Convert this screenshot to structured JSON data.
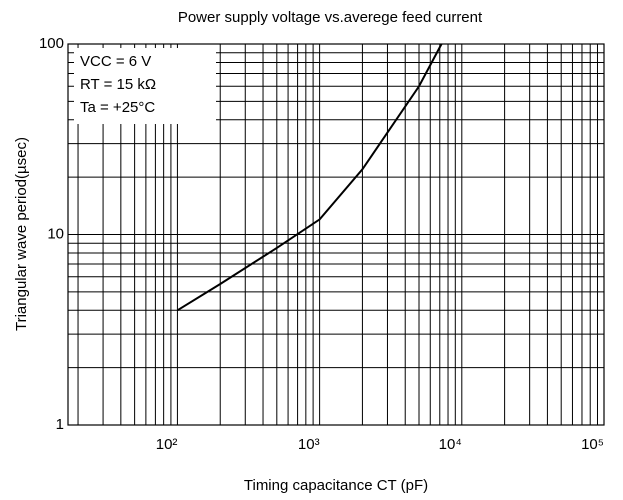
{
  "chart_data": {
    "type": "line",
    "title": "Power supply voltage vs.averege feed current",
    "x_label": "Timing capacitance CT (pF)",
    "y_label": "Triangular wave period(µsec)",
    "annotations": [
      "VCC = 6 V",
      "RT = 15 kΩ",
      "Ta = +25°C"
    ],
    "x": [
      100,
      200,
      500,
      1000,
      2000,
      5000,
      7200
    ],
    "series": [
      {
        "name": "Period",
        "color": "#000000",
        "values": [
          4,
          5.5,
          8.5,
          12,
          22,
          60,
          100
        ]
      }
    ],
    "xlim": [
      17,
      100000
    ],
    "ylim": [
      1,
      100
    ],
    "xticks": [
      {
        "value": 100,
        "label": "10²"
      },
      {
        "value": 1000,
        "label": "10³"
      },
      {
        "value": 10000,
        "label": "10⁴"
      },
      {
        "value": 100000,
        "label": "10⁵"
      }
    ],
    "yticks": [
      1,
      10,
      100
    ],
    "xscale": "log",
    "yscale": "log",
    "grid": true
  }
}
